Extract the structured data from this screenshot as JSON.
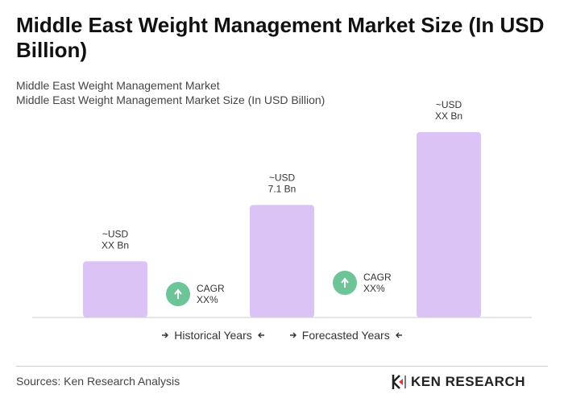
{
  "chart_data": {
    "type": "bar",
    "title": "Middle East Weight Management Market Size (In USD Billion)",
    "subtitle": [
      "Middle East Weight Management Market",
      "Middle East Weight Management Market Size (In USD Billion)"
    ],
    "categories": [
      null,
      null,
      null
    ],
    "values": [
      3.55,
      7.1,
      11.7
    ],
    "value_labels": [
      [
        "~USD",
        "XX Bn"
      ],
      [
        "~USD",
        "7.1 Bn"
      ],
      [
        "~USD",
        "XX Bn"
      ]
    ],
    "color": "#dcc3f6",
    "annotations": [
      [
        "CAGR",
        "XX%"
      ],
      [
        "CAGR",
        "XX%"
      ]
    ],
    "annotation_color": "#6cc497",
    "legend": [
      "Historical Years",
      "Forecasted Years"
    ],
    "source": "Sources: Ken Research Analysis",
    "brand": "KEN RESEARCH"
  }
}
